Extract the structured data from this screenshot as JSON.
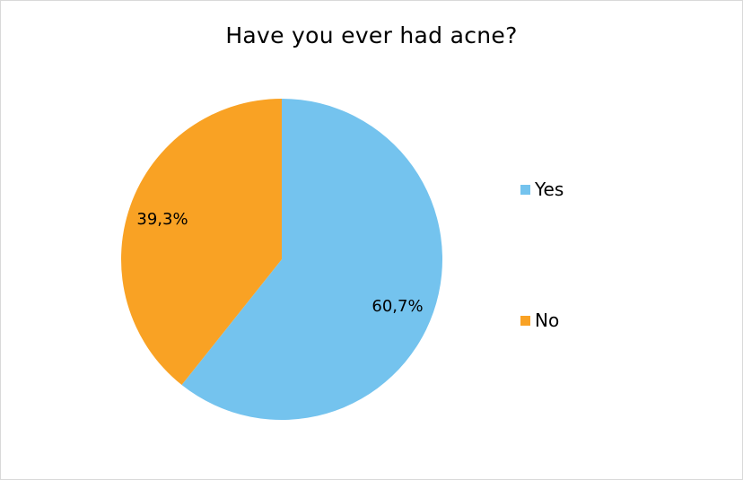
{
  "chart_data": {
    "type": "pie",
    "title": "Have you ever had acne?",
    "categories": [
      "Yes",
      "No"
    ],
    "values": [
      60.7,
      39.3
    ],
    "data_labels": [
      "60,7%",
      "39,3%"
    ],
    "colors": [
      "#74c3ee",
      "#f9a224"
    ],
    "start_angle_deg": 0,
    "direction": "clockwise",
    "legend_position": "right"
  }
}
